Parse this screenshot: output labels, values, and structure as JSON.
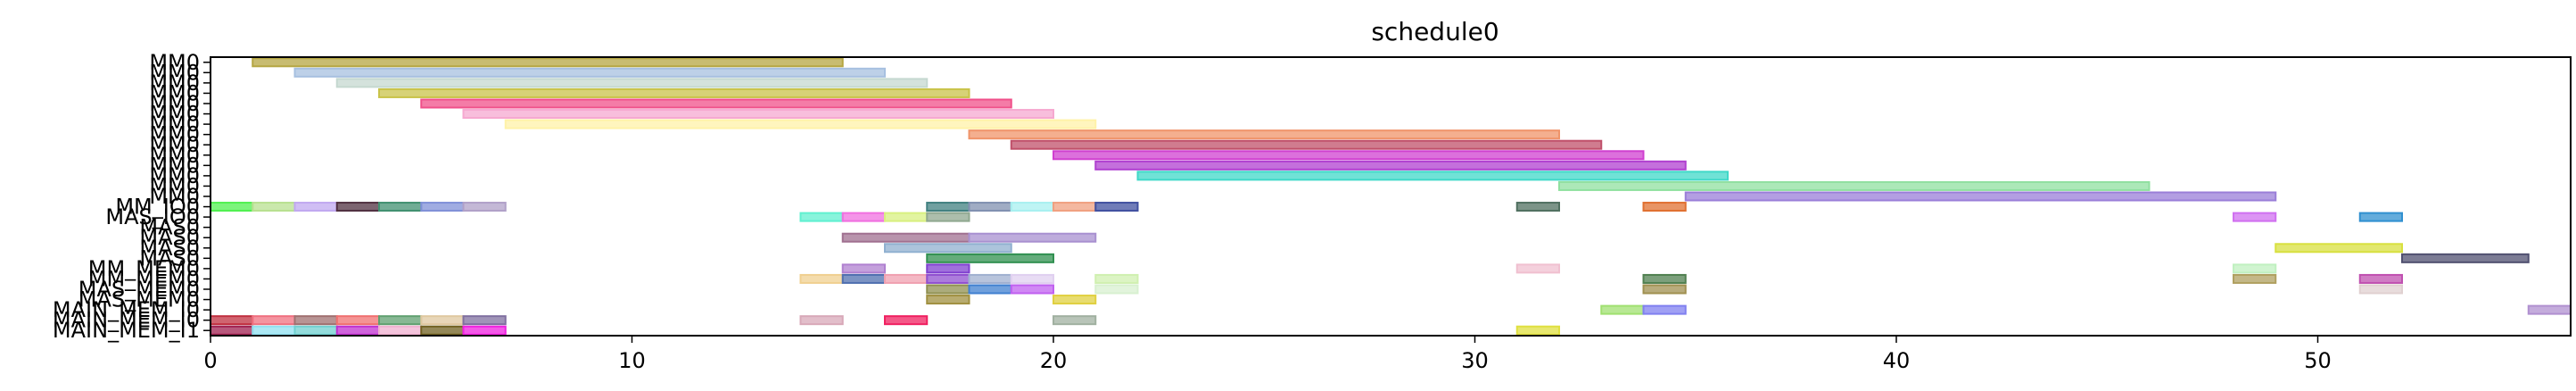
{
  "chart_data": {
    "type": "gantt",
    "title": "schedule0",
    "xlabel": "",
    "ylabel": "",
    "xlim": [
      0,
      56
    ],
    "grid": false,
    "legend": "none",
    "x_ticks": [
      0,
      10,
      20,
      30,
      40,
      50
    ],
    "rows": [
      {
        "label": "MM0",
        "bars": [
          {
            "start": 1,
            "end": 15,
            "color": "#b5a642"
          }
        ]
      },
      {
        "label": "MM0",
        "bars": [
          {
            "start": 2,
            "end": 16,
            "color": "#a7c0e0"
          }
        ]
      },
      {
        "label": "MM0",
        "bars": [
          {
            "start": 3,
            "end": 17,
            "color": "#c5d8d0"
          }
        ]
      },
      {
        "label": "MM0",
        "bars": [
          {
            "start": 4,
            "end": 18,
            "color": "#c9c34a"
          }
        ]
      },
      {
        "label": "MM0",
        "bars": [
          {
            "start": 5,
            "end": 19,
            "color": "#f0508a"
          }
        ]
      },
      {
        "label": "MM0",
        "bars": [
          {
            "start": 6,
            "end": 20,
            "color": "#f6a8d0"
          }
        ]
      },
      {
        "label": "MM0",
        "bars": [
          {
            "start": 7,
            "end": 21,
            "color": "#fff2a8"
          }
        ]
      },
      {
        "label": "MM0",
        "bars": [
          {
            "start": 18,
            "end": 32,
            "color": "#f0946a"
          }
        ]
      },
      {
        "label": "MM0",
        "bars": [
          {
            "start": 19,
            "end": 33,
            "color": "#c0506a"
          }
        ]
      },
      {
        "label": "MM0",
        "bars": [
          {
            "start": 20,
            "end": 34,
            "color": "#d040d0"
          }
        ]
      },
      {
        "label": "MM0",
        "bars": [
          {
            "start": 21,
            "end": 35,
            "color": "#b040d0"
          }
        ]
      },
      {
        "label": "MM0",
        "bars": [
          {
            "start": 22,
            "end": 36,
            "color": "#40d8c8"
          }
        ]
      },
      {
        "label": "MM0",
        "bars": [
          {
            "start": 32,
            "end": 46,
            "color": "#90e0a0"
          }
        ]
      },
      {
        "label": "MM0",
        "bars": [
          {
            "start": 35,
            "end": 49,
            "color": "#9a7ed8"
          }
        ]
      },
      {
        "label": "MM_IO0",
        "bars": [
          {
            "start": 0,
            "end": 1,
            "color": "#50f050"
          },
          {
            "start": 1,
            "end": 2,
            "color": "#b8e090"
          },
          {
            "start": 2,
            "end": 3,
            "color": "#c0a8f0"
          },
          {
            "start": 3,
            "end": 4,
            "color": "#503040"
          },
          {
            "start": 4,
            "end": 5,
            "color": "#409070"
          },
          {
            "start": 5,
            "end": 6,
            "color": "#8090d8"
          },
          {
            "start": 6,
            "end": 7,
            "color": "#b0a0c8"
          },
          {
            "start": 17,
            "end": 18,
            "color": "#408080"
          },
          {
            "start": 18,
            "end": 19,
            "color": "#8090b0"
          },
          {
            "start": 19,
            "end": 20,
            "color": "#a8f0f0"
          },
          {
            "start": 20,
            "end": 21,
            "color": "#f0a080"
          },
          {
            "start": 21,
            "end": 22,
            "color": "#4050a0"
          },
          {
            "start": 31,
            "end": 32,
            "color": "#507060"
          },
          {
            "start": 34,
            "end": 35,
            "color": "#e07030"
          }
        ]
      },
      {
        "label": "MAS_IO0",
        "bars": [
          {
            "start": 14,
            "end": 15,
            "color": "#60f0d0"
          },
          {
            "start": 15,
            "end": 16,
            "color": "#f070e0"
          },
          {
            "start": 16,
            "end": 17,
            "color": "#d8f080"
          },
          {
            "start": 17,
            "end": 18,
            "color": "#90a890"
          },
          {
            "start": 48,
            "end": 49,
            "color": "#d070f0"
          },
          {
            "start": 51,
            "end": 52,
            "color": "#3090d0"
          }
        ]
      },
      {
        "label": "MAS0",
        "bars": []
      },
      {
        "label": "MAS0",
        "bars": [
          {
            "start": 15,
            "end": 18,
            "color": "#a07090"
          },
          {
            "start": 18,
            "end": 21,
            "color": "#a890d0"
          }
        ]
      },
      {
        "label": "MAS0",
        "bars": [
          {
            "start": 16,
            "end": 19,
            "color": "#90b0d0"
          },
          {
            "start": 49,
            "end": 52,
            "color": "#d8e040"
          }
        ]
      },
      {
        "label": "MAS0",
        "bars": [
          {
            "start": 17,
            "end": 20,
            "color": "#309050"
          },
          {
            "start": 52,
            "end": 55,
            "color": "#505070"
          }
        ]
      },
      {
        "label": "MM_MEM0",
        "bars": [
          {
            "start": 15,
            "end": 16,
            "color": "#b080d0"
          },
          {
            "start": 17,
            "end": 18,
            "color": "#8040d0"
          },
          {
            "start": 31,
            "end": 32,
            "color": "#f0c0d0"
          },
          {
            "start": 48,
            "end": 49,
            "color": "#c0f0c0"
          }
        ]
      },
      {
        "label": "MM_MEM0",
        "bars": [
          {
            "start": 14,
            "end": 15,
            "color": "#f0d090"
          },
          {
            "start": 15,
            "end": 16,
            "color": "#5070b0"
          },
          {
            "start": 16,
            "end": 17,
            "color": "#f0a0b0"
          },
          {
            "start": 17,
            "end": 18,
            "color": "#9050d0"
          },
          {
            "start": 18,
            "end": 19,
            "color": "#a0b0d0"
          },
          {
            "start": 19,
            "end": 20,
            "color": "#e0d0f0"
          },
          {
            "start": 21,
            "end": 22,
            "color": "#d0f0b0"
          },
          {
            "start": 34,
            "end": 35,
            "color": "#508050"
          },
          {
            "start": 48,
            "end": 49,
            "color": "#b0a060"
          },
          {
            "start": 51,
            "end": 52,
            "color": "#c050b0"
          }
        ]
      },
      {
        "label": "MAS_MEM0",
        "bars": [
          {
            "start": 17,
            "end": 18,
            "color": "#909050"
          },
          {
            "start": 18,
            "end": 19,
            "color": "#4080d0"
          },
          {
            "start": 19,
            "end": 20,
            "color": "#c060f0"
          },
          {
            "start": 21,
            "end": 22,
            "color": "#d8f0d0"
          },
          {
            "start": 34,
            "end": 35,
            "color": "#a09050"
          },
          {
            "start": 51,
            "end": 52,
            "color": "#e0d0d0"
          }
        ]
      },
      {
        "label": "MAS_MEM0",
        "bars": [
          {
            "start": 17,
            "end": 18,
            "color": "#a09040"
          },
          {
            "start": 20,
            "end": 21,
            "color": "#e0d040"
          }
        ]
      },
      {
        "label": "MAIN_MEM_I0",
        "bars": [
          {
            "start": 33,
            "end": 34,
            "color": "#a0e070"
          },
          {
            "start": 34,
            "end": 35,
            "color": "#8080f0"
          },
          {
            "start": 55,
            "end": 56,
            "color": "#b090d0"
          }
        ]
      },
      {
        "label": "MAIN_MEM_I0",
        "bars": [
          {
            "start": 0,
            "end": 1,
            "color": "#c03040"
          },
          {
            "start": 1,
            "end": 2,
            "color": "#f07080"
          },
          {
            "start": 2,
            "end": 3,
            "color": "#a07070"
          },
          {
            "start": 3,
            "end": 4,
            "color": "#f07070"
          },
          {
            "start": 4,
            "end": 5,
            "color": "#60a070"
          },
          {
            "start": 5,
            "end": 6,
            "color": "#e0c8a0"
          },
          {
            "start": 6,
            "end": 7,
            "color": "#8070a0"
          },
          {
            "start": 14,
            "end": 15,
            "color": "#d8a8b8"
          },
          {
            "start": 16,
            "end": 17,
            "color": "#f02060"
          },
          {
            "start": 20,
            "end": 21,
            "color": "#a0b0a0"
          }
        ]
      },
      {
        "label": "MAIN_MEM_I1",
        "bars": [
          {
            "start": 0,
            "end": 1,
            "color": "#a02050"
          },
          {
            "start": 1,
            "end": 2,
            "color": "#90e0f0"
          },
          {
            "start": 2,
            "end": 3,
            "color": "#70d0d0"
          },
          {
            "start": 3,
            "end": 4,
            "color": "#c030d0"
          },
          {
            "start": 4,
            "end": 5,
            "color": "#f0b0d0"
          },
          {
            "start": 5,
            "end": 6,
            "color": "#706020"
          },
          {
            "start": 6,
            "end": 7,
            "color": "#f020e0"
          },
          {
            "start": 31,
            "end": 32,
            "color": "#e0e040"
          }
        ]
      }
    ]
  }
}
